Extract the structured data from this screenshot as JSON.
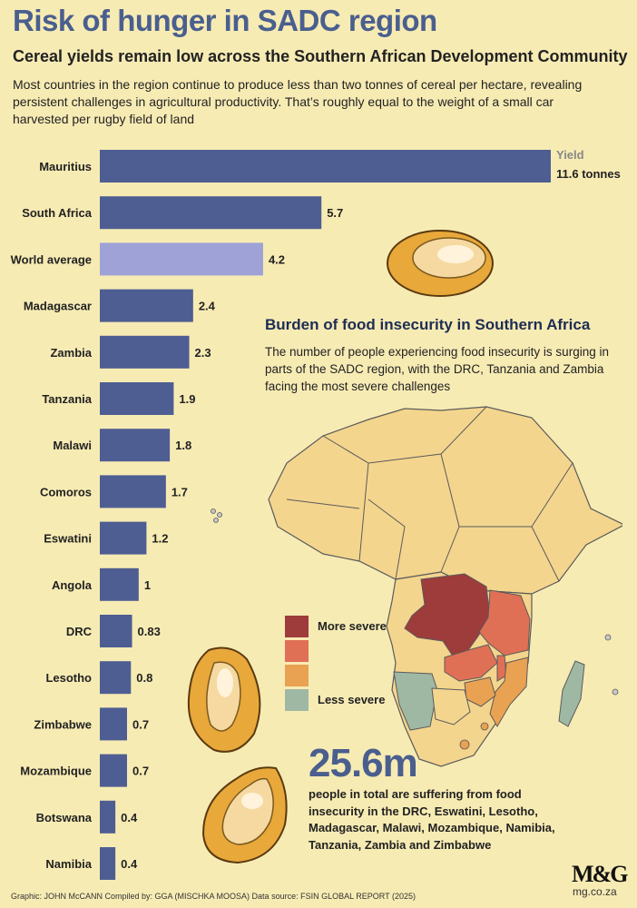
{
  "title": "Risk of hunger in SADC region",
  "subtitle": "Cereal yields remain low across the Southern African Development Community",
  "intro": "Most countries in the region continue to produce less than two tonnes of cereal per hectare, revealing persistent challenges in agricultural productivity. That’s roughly equal to the weight of a small car harvested per rugby field of land",
  "chart_data": {
    "type": "bar",
    "orientation": "horizontal",
    "series_label": "Yield",
    "unit": "tonnes",
    "categories": [
      "Mauritius",
      "South Africa",
      "World average",
      "Madagascar",
      "Zambia",
      "Tanzania",
      "Malawi",
      "Comoros",
      "Eswatini",
      "Angola",
      "DRC",
      "Lesotho",
      "Zimbabwe",
      "Mozambique",
      "Botswana",
      "Namibia"
    ],
    "values": [
      11.6,
      5.7,
      4.2,
      2.4,
      2.3,
      1.9,
      1.8,
      1.7,
      1.2,
      1,
      0.83,
      0.8,
      0.7,
      0.7,
      0.4,
      0.4
    ],
    "value_labels": [
      "11.6 tonnes",
      "5.7",
      "4.2",
      "2.4",
      "2.3",
      "1.9",
      "1.8",
      "1.7",
      "1.2",
      "1",
      "0.83",
      "0.8",
      "0.7",
      "0.7",
      "0.4",
      "0.4"
    ],
    "highlight_category": "World average",
    "colors": {
      "bar": "#4e5e92",
      "highlight": "#9ea2d6"
    }
  },
  "map": {
    "title": "Burden of food insecurity in Southern Africa",
    "description": "The number of people experiencing food insecurity is surging in parts of the SADC region, with the DRC, Tanzania and Zambia facing the most severe challenges",
    "legend": [
      {
        "label": "More severe",
        "color": "#9e3b3b"
      },
      {
        "label": "",
        "color": "#e07055"
      },
      {
        "label": "",
        "color": "#e9a152"
      },
      {
        "label": "Less severe",
        "color": "#9fb8a4"
      }
    ],
    "land_color": "#f3d58d"
  },
  "stat": {
    "number": "25.6m",
    "text": "people in total are suffering from food insecurity in the DRC, Eswatini, Lesotho, Madagascar, Malawi, Mozambique, Namibia, Tanzania, Zambia and Zimbabwe"
  },
  "logo": {
    "name": "M&G",
    "url": "mg.co.za"
  },
  "footer": "Graphic: JOHN McCANN  Compiled by: GGA (MISCHKA MOOSA)  Data source: FSIN GLOBAL REPORT (2025)"
}
